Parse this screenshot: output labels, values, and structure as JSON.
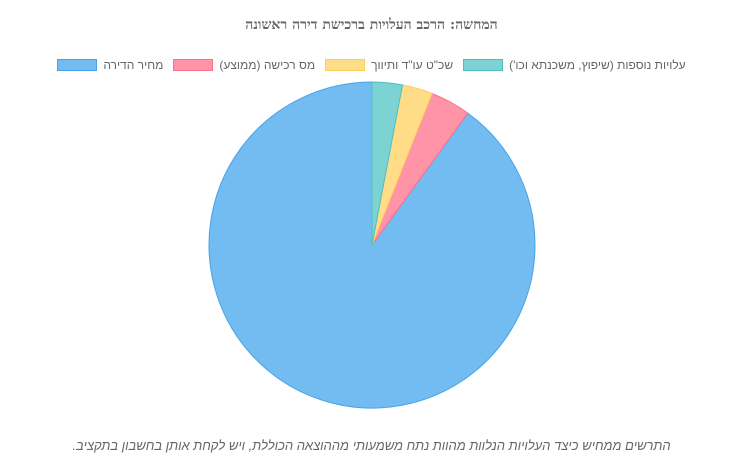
{
  "chart_data": {
    "type": "pie",
    "title": "המחשה: הרכב העלויות ברכישת דירה ראשונה",
    "categories": [
      "מחיר הדירה",
      "מס רכישה (ממוצע)",
      "שכ\"ט עו\"ד ותיווך",
      "עלויות נוספות (שיפוץ, משכנתא וכו')"
    ],
    "values": [
      90,
      4,
      3,
      3
    ],
    "unit": "%",
    "colors": [
      "#72bcf2",
      "#ff93a8",
      "#ffdd88",
      "#7dd3d3"
    ],
    "border_colors": [
      "#4aa3e6",
      "#ff6d8a",
      "#ffce5a",
      "#4cc0c0"
    ],
    "legend_position": "top",
    "start_angle_deg": 0,
    "direction": "counterclockwise"
  },
  "caption": "התרשים ממחיש כיצד העלויות הנלוות מהוות נתח משמעותי מההוצאה הכוללת, ויש לקחת אותן בחשבון בתקציב."
}
